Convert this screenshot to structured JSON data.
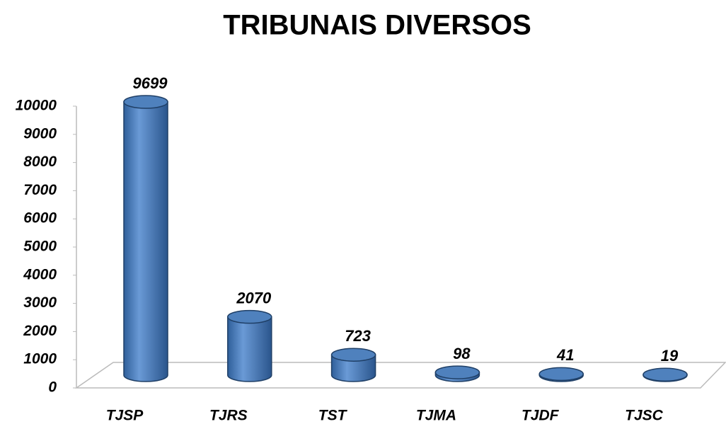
{
  "chart_data": {
    "type": "bar3d",
    "title": "TRIBUNAIS DIVERSOS",
    "categories": [
      "TJSP",
      "TJRS",
      "TST",
      "TJMA",
      "TJDF",
      "TJSC"
    ],
    "values": [
      9699,
      2070,
      723,
      98,
      41,
      19
    ],
    "color": "#4f81bd",
    "ylim": [
      0,
      10000
    ],
    "yticks": [
      0,
      1000,
      2000,
      3000,
      4000,
      5000,
      6000,
      7000,
      8000,
      9000,
      10000
    ]
  }
}
